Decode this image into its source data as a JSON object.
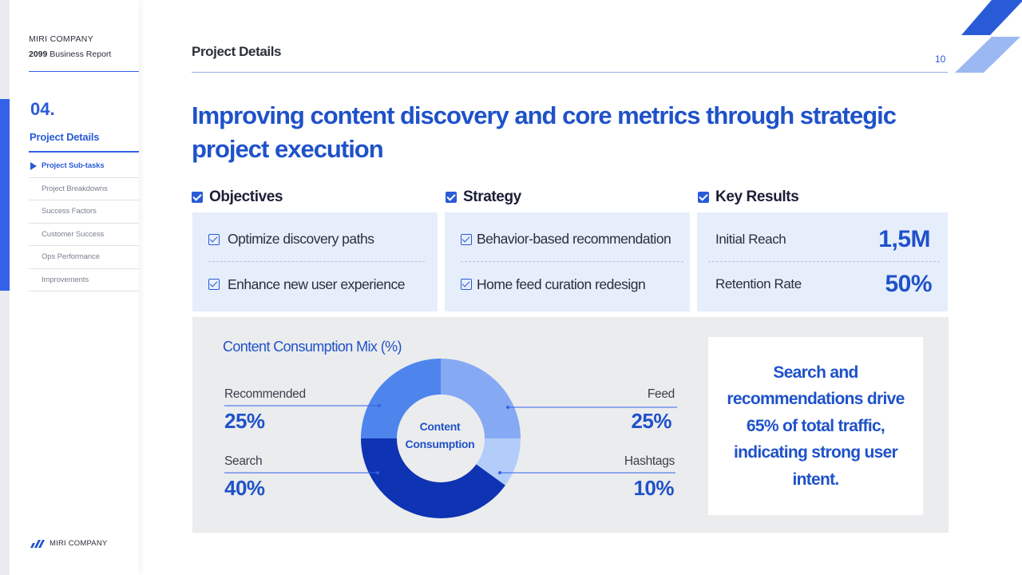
{
  "sidebar": {
    "company": "MIRI COMPANY",
    "report_year": "2099",
    "report_label": "Business Report",
    "chapter_number": "04.",
    "chapter_title": "Project Details",
    "nav_items": [
      {
        "label": "Project Sub-tasks",
        "active": true
      },
      {
        "label": "Project Breakdowns"
      },
      {
        "label": "Success Factors"
      },
      {
        "label": "Customer Success"
      },
      {
        "label": "Ops Performance"
      },
      {
        "label": "Improvements"
      }
    ],
    "footer_company": "MIRI COMPANY"
  },
  "header": {
    "section_title": "Project Details",
    "page_number": "10"
  },
  "headline_line1": "Improving content discovery and core metrics through strategic",
  "headline_line2": "project execution",
  "objectives": {
    "heading": "Objectives",
    "items": [
      "Optimize discovery paths",
      "Enhance new user experience"
    ]
  },
  "strategy": {
    "heading": "Strategy",
    "items": [
      "Behavior-based recommendation",
      "Home feed curation redesign"
    ]
  },
  "key_results": {
    "heading": "Key Results",
    "metrics": [
      {
        "label": "Initial Reach",
        "value": "1,5M"
      },
      {
        "label": "Retention Rate",
        "value": "50%"
      }
    ]
  },
  "chart": {
    "center_line1": "Content",
    "center_line2": "Consumption"
  },
  "chart_data": {
    "type": "pie",
    "title": "Content Consumption Mix (%)",
    "categories": [
      "Feed",
      "Hashtags",
      "Search",
      "Recommended"
    ],
    "values": [
      25,
      10,
      40,
      25
    ],
    "value_labels": [
      "25%",
      "10%",
      "40%",
      "25%"
    ],
    "colors": [
      "#86a9f4",
      "#b3cdfa",
      "#0e33b3",
      "#4d85ec"
    ],
    "donut": true
  },
  "callout": {
    "line1": "Search and",
    "line2": "recommendations drive",
    "line3": "65% of total traffic,",
    "line4": "indicating strong user",
    "line5": "intent."
  }
}
